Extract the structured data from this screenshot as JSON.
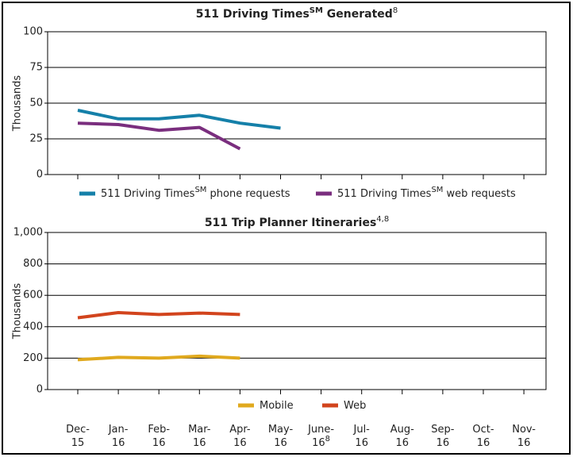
{
  "chart_data": [
    {
      "type": "line",
      "title": [
        {
          "text": "511 Driving Times"
        },
        {
          "text": "SM",
          "sup": true
        },
        {
          "text": " Generated"
        },
        {
          "text": "8",
          "sup": true,
          "light": true
        }
      ],
      "ylabel": "Thousands",
      "ylim": [
        0,
        100
      ],
      "yticks": [
        0,
        25,
        50,
        75,
        100
      ],
      "grid": true,
      "series": [
        {
          "name": [
            {
              "text": "511 Driving Times"
            },
            {
              "text": "SM",
              "sup": true
            },
            {
              "text": " phone requests"
            }
          ],
          "color": "#1580a9",
          "values": [
            45,
            39,
            39,
            41.5,
            36,
            32.5,
            null,
            null,
            null,
            null,
            null,
            null
          ]
        },
        {
          "name": [
            {
              "text": "511 Driving Times"
            },
            {
              "text": "SM",
              "sup": true
            },
            {
              "text": " web requests"
            }
          ],
          "color": "#7a2e7e",
          "values": [
            36,
            35,
            31,
            33,
            18,
            null,
            null,
            null,
            null,
            null,
            null,
            null
          ]
        }
      ]
    },
    {
      "type": "line",
      "title": [
        {
          "text": "511 Trip Planner Itineraries"
        },
        {
          "text": "4,8",
          "sup": true,
          "light": true
        }
      ],
      "ylabel": "Thousands",
      "ylim": [
        0,
        1000
      ],
      "yticks": [
        0,
        200,
        400,
        600,
        800,
        {
          "value": 1000,
          "label": "1,000"
        }
      ],
      "grid": true,
      "categories": [
        {
          "lines": [
            "Dec-",
            "15"
          ]
        },
        {
          "lines": [
            "Jan-",
            "16"
          ]
        },
        {
          "lines": [
            "Feb-",
            "16"
          ]
        },
        {
          "lines": [
            "Mar-",
            "16"
          ]
        },
        {
          "lines": [
            "Apr-",
            "16"
          ]
        },
        {
          "lines": [
            "May-",
            "16"
          ]
        },
        {
          "lines": [
            "June-",
            "16"
          ],
          "sup": "8"
        },
        {
          "lines": [
            "Jul-",
            "16"
          ]
        },
        {
          "lines": [
            "Aug-",
            "16"
          ]
        },
        {
          "lines": [
            "Sep-",
            "16"
          ]
        },
        {
          "lines": [
            "Oct-",
            "16"
          ]
        },
        {
          "lines": [
            "Nov-",
            "16"
          ]
        }
      ],
      "series": [
        {
          "name": [
            {
              "text": "Mobile"
            }
          ],
          "color": "#e0a91e",
          "values": [
            190,
            205,
            200,
            213,
            200,
            null,
            null,
            null,
            null,
            null,
            null,
            null
          ]
        },
        {
          "name": [
            {
              "text": "Web"
            }
          ],
          "color": "#d2441d",
          "values": [
            457,
            490,
            478,
            487,
            478,
            null,
            null,
            null,
            null,
            null,
            null,
            null
          ]
        }
      ]
    }
  ]
}
